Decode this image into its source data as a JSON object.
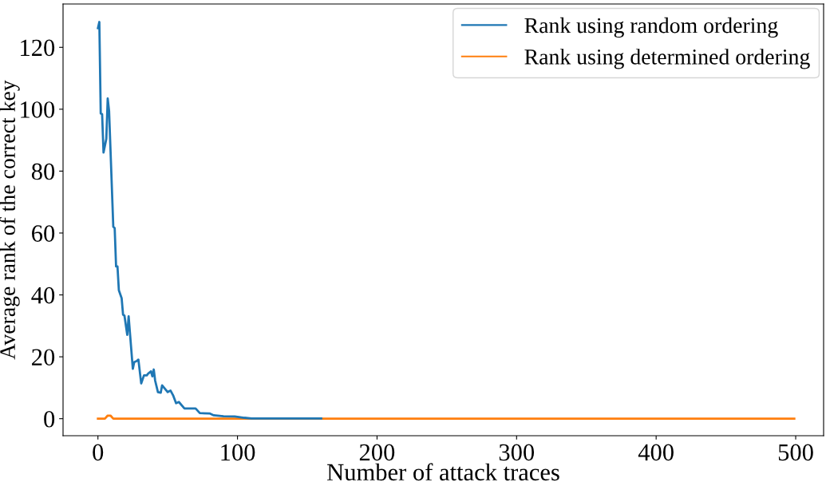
{
  "chart_data": {
    "type": "line",
    "xlabel": "Number of attack traces",
    "ylabel": "Average rank of the correct key",
    "xlim": [
      -25,
      520
    ],
    "ylim": [
      -5.5,
      134
    ],
    "xticks": [
      0,
      100,
      200,
      300,
      400,
      500
    ],
    "yticks": [
      0,
      20,
      40,
      60,
      80,
      100,
      120
    ],
    "legend": "top right",
    "grid": false,
    "series": [
      {
        "name": "Rank using random ordering",
        "color": "#1f77b4",
        "x": [
          0,
          1,
          2,
          3,
          4,
          6,
          7,
          8,
          11,
          12,
          13,
          14,
          15,
          17,
          18,
          19,
          21,
          22,
          25,
          26,
          28,
          29,
          31,
          33,
          35,
          36,
          38,
          39,
          40,
          41,
          43,
          45,
          46,
          48,
          50,
          52,
          54,
          56,
          58,
          62,
          70,
          73,
          80,
          83,
          90,
          98,
          105,
          110,
          160
        ],
        "values": [
          126.2,
          128.2,
          98.6,
          98.4,
          86,
          90.4,
          103.5,
          99.4,
          62,
          61.6,
          49.2,
          49.2,
          41.5,
          38.9,
          33.6,
          33.3,
          27.1,
          33.1,
          16.1,
          18.3,
          18.7,
          19.1,
          11.4,
          14,
          14,
          14.6,
          15.3,
          13.7,
          15.9,
          12.3,
          8.6,
          8.4,
          10.8,
          9.7,
          8.6,
          9.1,
          7.4,
          5,
          5.4,
          3.3,
          3.3,
          1.8,
          1.7,
          1.1,
          0.8,
          0.7,
          0.3,
          0.1,
          0.1
        ]
      },
      {
        "name": "Rank using determined ordering",
        "color": "#ff7f0e",
        "x": [
          0,
          5,
          7,
          9,
          11,
          499
        ],
        "values": [
          0,
          0,
          1,
          1,
          0,
          0
        ]
      }
    ]
  }
}
